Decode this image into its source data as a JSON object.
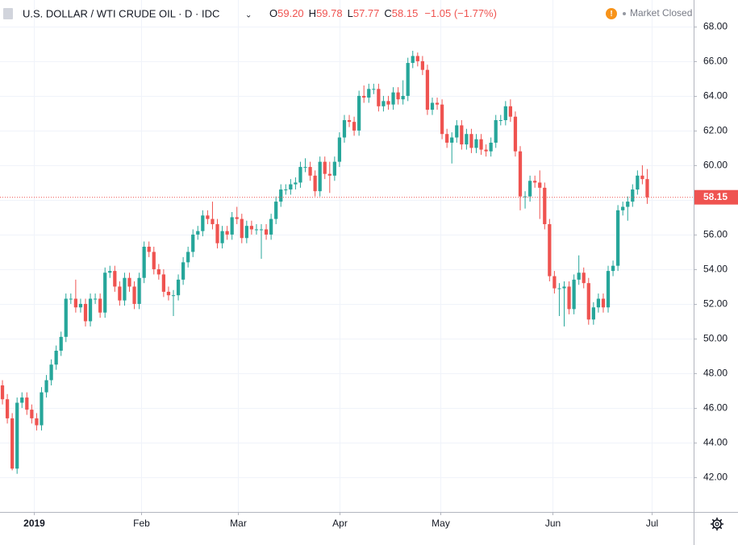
{
  "chart_data": {
    "type": "candlestick",
    "title": "U.S. DOLLAR / WTI CRUDE OIL · D · IDC",
    "legend_labels": [
      "O",
      "H",
      "L",
      "C"
    ],
    "legend_values": [
      "59.20",
      "59.78",
      "57.77",
      "58.15"
    ],
    "change": "−1.05 (−1.77%)",
    "status": "Market Closed",
    "up_color": "#26a69a",
    "down_color": "#ef5350",
    "grid": true,
    "xlim": [
      -0.5,
      141.5
    ],
    "xticks": [
      {
        "value": 6.4,
        "label": "2019"
      },
      {
        "value": 28.4,
        "label": "Feb"
      },
      {
        "value": 48.2,
        "label": "Mar"
      },
      {
        "value": 69,
        "label": "Apr"
      },
      {
        "value": 89.7,
        "label": "May"
      },
      {
        "value": 112.6,
        "label": "Jun"
      },
      {
        "value": 132.9,
        "label": "Jul"
      }
    ],
    "ylim": [
      40,
      69.53
    ],
    "yticks": [
      {
        "value": 42,
        "label": "42.00"
      },
      {
        "value": 44,
        "label": "44.00"
      },
      {
        "value": 46,
        "label": "46.00"
      },
      {
        "value": 48,
        "label": "48.00"
      },
      {
        "value": 50,
        "label": "50.00"
      },
      {
        "value": 52,
        "label": "52.00"
      },
      {
        "value": 54,
        "label": "54.00"
      },
      {
        "value": 56,
        "label": "56.00"
      },
      {
        "value": 58,
        "label": "58.00"
      },
      {
        "value": 60,
        "label": "60.00"
      },
      {
        "value": 62,
        "label": "62.00"
      },
      {
        "value": 64,
        "label": "64.00"
      },
      {
        "value": 66,
        "label": "66.00"
      },
      {
        "value": 68,
        "label": "68.00"
      }
    ],
    "open": [
      47.3,
      46.5,
      45.4,
      42.5,
      46.3,
      46.6,
      45.9,
      45.4,
      45.0,
      46.9,
      47.6,
      48.5,
      49.3,
      50.1,
      52.3,
      52.3,
      51.8,
      52.0,
      51.0,
      52.3,
      52.3,
      51.5,
      53.8,
      53.9,
      53.0,
      52.2,
      53.5,
      53.0,
      52.0,
      53.5,
      55.3,
      55.0,
      54.0,
      53.7,
      52.7,
      52.5,
      52.5,
      53.4,
      54.4,
      55.0,
      56.0,
      56.2,
      57.1,
      56.9,
      56.6,
      55.5,
      56.2,
      56.0,
      57.0,
      56.9,
      55.8,
      56.5,
      56.3,
      56.3,
      56.3,
      56.0,
      56.9,
      57.9,
      58.6,
      58.6,
      58.9,
      59.0,
      59.9,
      59.9,
      59.4,
      58.5,
      60.2,
      59.5,
      59.4,
      60.2,
      61.6,
      62.6,
      62.5,
      62.0,
      64.0,
      63.9,
      64.4,
      64.4,
      63.4,
      63.7,
      63.5,
      64.2,
      63.8,
      64.0,
      65.9,
      66.3,
      66.0,
      65.5,
      63.2,
      63.6,
      63.5,
      61.8,
      61.3,
      61.6,
      62.3,
      61.2,
      61.8,
      61.0,
      61.5,
      60.9,
      60.8,
      61.3,
      62.6,
      62.6,
      63.4,
      62.8,
      60.8,
      58.2,
      58.2,
      59.1,
      59.0,
      58.7,
      56.6,
      53.6,
      52.9,
      52.9,
      53.0,
      51.7,
      53.4,
      53.8,
      53.2,
      51.1,
      51.8,
      52.3,
      51.8,
      53.9,
      54.2,
      57.4,
      57.6,
      57.9,
      58.6,
      59.4,
      59.2
    ],
    "high": [
      47.6,
      46.8,
      45.7,
      46.6,
      46.9,
      46.9,
      46.2,
      45.7,
      47.2,
      47.9,
      48.8,
      49.6,
      50.4,
      52.6,
      52.6,
      53.4,
      52.3,
      52.3,
      52.6,
      52.6,
      52.6,
      54.1,
      54.2,
      54.2,
      53.3,
      53.8,
      53.8,
      53.3,
      53.8,
      55.6,
      55.6,
      55.3,
      54.3,
      54.0,
      53.0,
      52.8,
      53.7,
      54.7,
      55.3,
      56.3,
      56.5,
      57.4,
      57.4,
      57.9,
      56.9,
      56.5,
      56.5,
      57.3,
      57.6,
      57.2,
      56.8,
      56.8,
      56.6,
      56.6,
      56.6,
      57.2,
      58.2,
      58.9,
      58.9,
      59.2,
      59.3,
      60.2,
      60.4,
      60.2,
      59.7,
      60.5,
      60.5,
      60.2,
      60.5,
      61.9,
      62.9,
      62.9,
      62.8,
      64.3,
      64.6,
      64.7,
      64.7,
      64.7,
      64.0,
      64.0,
      64.5,
      64.5,
      64.9,
      66.2,
      66.6,
      66.5,
      66.3,
      65.8,
      63.9,
      63.9,
      63.8,
      62.1,
      61.9,
      62.6,
      62.6,
      62.1,
      62.1,
      61.8,
      61.8,
      61.2,
      61.6,
      62.9,
      62.9,
      63.7,
      63.8,
      63.1,
      61.1,
      58.5,
      59.4,
      59.4,
      59.7,
      59.0,
      56.9,
      53.9,
      53.2,
      53.3,
      53.3,
      53.7,
      54.8,
      54.1,
      53.5,
      52.1,
      52.6,
      52.6,
      54.2,
      54.5,
      57.7,
      57.9,
      58.2,
      58.9,
      59.7,
      60.0,
      59.78
    ],
    "low": [
      46.2,
      45.1,
      42.4,
      42.2,
      46.0,
      45.6,
      45.1,
      44.7,
      44.7,
      46.6,
      47.3,
      48.2,
      49.0,
      49.8,
      52.0,
      51.5,
      51.5,
      50.7,
      50.7,
      52.0,
      51.2,
      51.2,
      53.5,
      52.7,
      51.9,
      51.9,
      52.7,
      51.7,
      51.7,
      53.2,
      54.7,
      53.7,
      53.4,
      52.4,
      52.2,
      51.3,
      52.2,
      53.1,
      54.1,
      54.7,
      55.7,
      55.9,
      56.6,
      56.3,
      55.2,
      55.2,
      55.7,
      55.7,
      56.6,
      55.5,
      55.5,
      56.0,
      56.0,
      54.6,
      55.7,
      55.7,
      56.6,
      57.6,
      58.3,
      58.3,
      58.6,
      58.7,
      59.6,
      59.1,
      58.2,
      58.2,
      59.2,
      58.4,
      59.1,
      59.9,
      61.3,
      62.2,
      61.7,
      61.7,
      63.6,
      63.6,
      64.1,
      63.1,
      63.1,
      63.2,
      63.2,
      63.5,
      63.5,
      63.7,
      65.6,
      65.7,
      65.2,
      62.9,
      62.9,
      63.2,
      61.5,
      61.0,
      60.1,
      61.3,
      60.9,
      60.9,
      60.7,
      60.7,
      60.6,
      60.5,
      60.5,
      61.0,
      62.3,
      62.3,
      62.5,
      60.5,
      57.4,
      57.5,
      57.9,
      58.7,
      56.9,
      56.3,
      53.3,
      52.6,
      51.3,
      50.7,
      51.4,
      51.4,
      53.1,
      52.9,
      50.8,
      50.8,
      51.5,
      51.5,
      51.5,
      53.6,
      53.9,
      57.1,
      56.8,
      57.6,
      58.3,
      58.9,
      57.77
    ],
    "close": [
      46.5,
      45.4,
      42.5,
      46.3,
      46.6,
      45.9,
      45.4,
      45.0,
      46.9,
      47.6,
      48.5,
      49.3,
      50.1,
      52.3,
      52.3,
      51.8,
      52.0,
      51.0,
      52.3,
      52.3,
      51.5,
      53.8,
      53.9,
      53.0,
      52.2,
      53.5,
      53.0,
      52.0,
      53.5,
      55.3,
      55.0,
      54.0,
      53.7,
      52.7,
      52.5,
      52.5,
      53.4,
      54.4,
      55.0,
      56.0,
      56.2,
      57.1,
      56.9,
      56.6,
      55.5,
      56.2,
      56.0,
      57.0,
      56.9,
      55.8,
      56.5,
      56.3,
      56.3,
      56.3,
      56.0,
      56.9,
      57.9,
      58.6,
      58.6,
      58.9,
      59.0,
      59.9,
      59.9,
      59.4,
      58.5,
      60.2,
      59.5,
      59.4,
      60.2,
      61.6,
      62.6,
      62.5,
      62.0,
      64.0,
      63.9,
      64.4,
      64.4,
      63.4,
      63.7,
      63.5,
      64.2,
      63.8,
      64.0,
      65.9,
      66.3,
      66.0,
      65.5,
      63.2,
      63.6,
      63.5,
      61.8,
      61.3,
      61.6,
      62.3,
      61.2,
      61.8,
      61.0,
      61.5,
      60.9,
      60.8,
      61.3,
      62.6,
      62.6,
      63.4,
      62.8,
      60.8,
      58.2,
      58.2,
      59.1,
      59.0,
      58.7,
      56.6,
      53.6,
      52.9,
      52.9,
      53.0,
      51.7,
      53.4,
      53.8,
      53.2,
      51.1,
      51.8,
      52.3,
      51.8,
      53.9,
      54.2,
      57.4,
      57.6,
      57.9,
      58.6,
      59.4,
      59.2,
      58.15
    ]
  }
}
